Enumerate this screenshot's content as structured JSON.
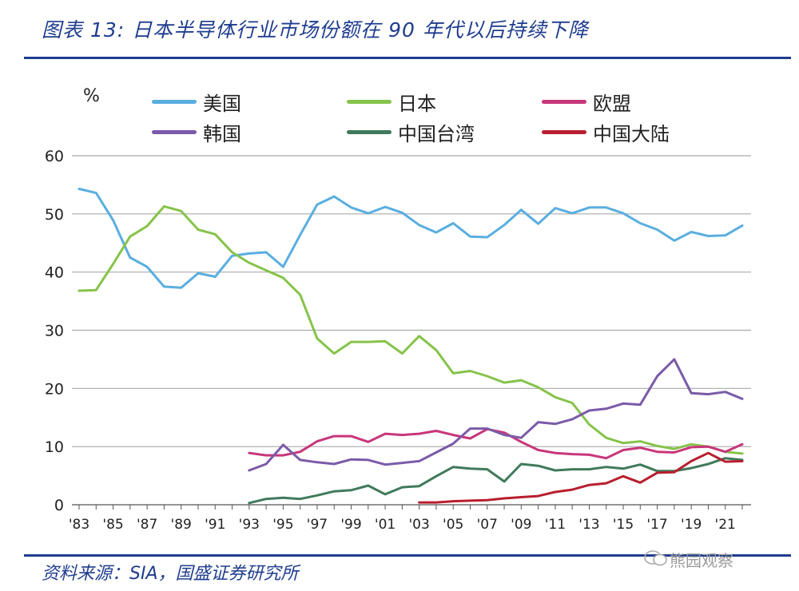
{
  "header": {
    "title": "图表 13: 日本半导体行业市场份额在 90 年代以后持续下降"
  },
  "footer": {
    "source": "资料来源：SIA，国盛证券研究所",
    "watermark": "熊园观察"
  },
  "chart_data": {
    "type": "line",
    "ylabel": "%",
    "ylim": [
      0,
      60
    ],
    "yticks": [
      0,
      10,
      20,
      30,
      40,
      50,
      60
    ],
    "xlim": [
      1983,
      2022
    ],
    "xtick_years": [
      1983,
      1985,
      1987,
      1989,
      1991,
      1993,
      1995,
      1997,
      1999,
      2001,
      2003,
      2005,
      2007,
      2009,
      2011,
      2013,
      2015,
      2017,
      2019,
      2021
    ],
    "xtick_labels": [
      "'83",
      "'85",
      "'87",
      "'89",
      "'91",
      "'93",
      "'95",
      "'97",
      "'99",
      "'01",
      "'03",
      "'05",
      "'07",
      "'09",
      "'11",
      "'13",
      "'15",
      "'17",
      "'19",
      "'21"
    ],
    "grid": true,
    "legend_position": "top",
    "series": [
      {
        "name": "美国",
        "color": "#5aaee0",
        "start": 1983,
        "values": [
          54.3,
          53.6,
          48.9,
          42.5,
          40.9,
          37.5,
          37.3,
          39.8,
          39.2,
          42.8,
          43.2,
          43.4,
          40.9,
          46.4,
          51.6,
          53.0,
          51.1,
          50.1,
          51.2,
          50.2,
          48.1,
          46.8,
          48.4,
          46.1,
          46.0,
          48.1,
          50.7,
          48.3,
          51.0,
          50.1,
          51.1,
          51.1,
          50.1,
          48.4,
          47.3,
          45.4,
          46.9,
          46.2,
          46.3,
          48.0
        ]
      },
      {
        "name": "日本",
        "color": "#86c34a",
        "start": 1983,
        "values": [
          36.8,
          36.9,
          41.4,
          46.1,
          47.9,
          51.3,
          50.5,
          47.3,
          46.5,
          43.4,
          41.6,
          40.3,
          39.0,
          36.1,
          28.6,
          26.0,
          28.0,
          28.0,
          28.1,
          26.0,
          29.0,
          26.6,
          22.6,
          23.0,
          22.1,
          21.0,
          21.4,
          20.2,
          18.5,
          17.5,
          13.8,
          11.5,
          10.6,
          10.9,
          10.1,
          9.6,
          10.4,
          10.0,
          9.1,
          8.8
        ]
      },
      {
        "name": "欧盟",
        "color": "#c8367a",
        "start": 1993,
        "values": [
          8.9,
          8.5,
          8.5,
          9.1,
          10.9,
          11.8,
          11.8,
          10.8,
          12.2,
          12.0,
          12.2,
          12.7,
          12.0,
          11.4,
          13.0,
          12.4,
          10.8,
          9.4,
          8.9,
          8.7,
          8.6,
          8.0,
          9.4,
          9.8,
          9.1,
          9.0,
          9.9,
          10.0,
          9.1,
          10.4
        ]
      },
      {
        "name": "韩国",
        "color": "#7b5ba8",
        "start": 1993,
        "values": [
          5.9,
          7.0,
          10.3,
          7.7,
          7.3,
          7.0,
          7.8,
          7.7,
          6.9,
          7.2,
          7.5,
          9.0,
          10.5,
          13.1,
          13.1,
          12.0,
          11.5,
          14.2,
          13.9,
          14.7,
          16.2,
          16.5,
          17.4,
          17.2,
          22.1,
          25.0,
          19.2,
          19.0,
          19.4,
          18.2
        ]
      },
      {
        "name": "中国台湾",
        "color": "#3f7a5c",
        "start": 1993,
        "values": [
          0.3,
          1.0,
          1.2,
          1.0,
          1.6,
          2.3,
          2.5,
          3.3,
          1.8,
          3.0,
          3.2,
          4.9,
          6.5,
          6.2,
          6.1,
          4.0,
          7.0,
          6.7,
          5.9,
          6.1,
          6.1,
          6.5,
          6.2,
          6.9,
          5.8,
          5.8,
          6.3,
          7.0,
          8.0,
          7.7
        ]
      },
      {
        "name": "中国大陆",
        "color": "#b81f2e",
        "start": 2003,
        "values": [
          0.4,
          0.4,
          0.6,
          0.7,
          0.8,
          1.1,
          1.3,
          1.5,
          2.2,
          2.6,
          3.4,
          3.7,
          4.9,
          3.8,
          5.5,
          5.6,
          7.5,
          8.9,
          7.4,
          7.5
        ]
      }
    ]
  }
}
